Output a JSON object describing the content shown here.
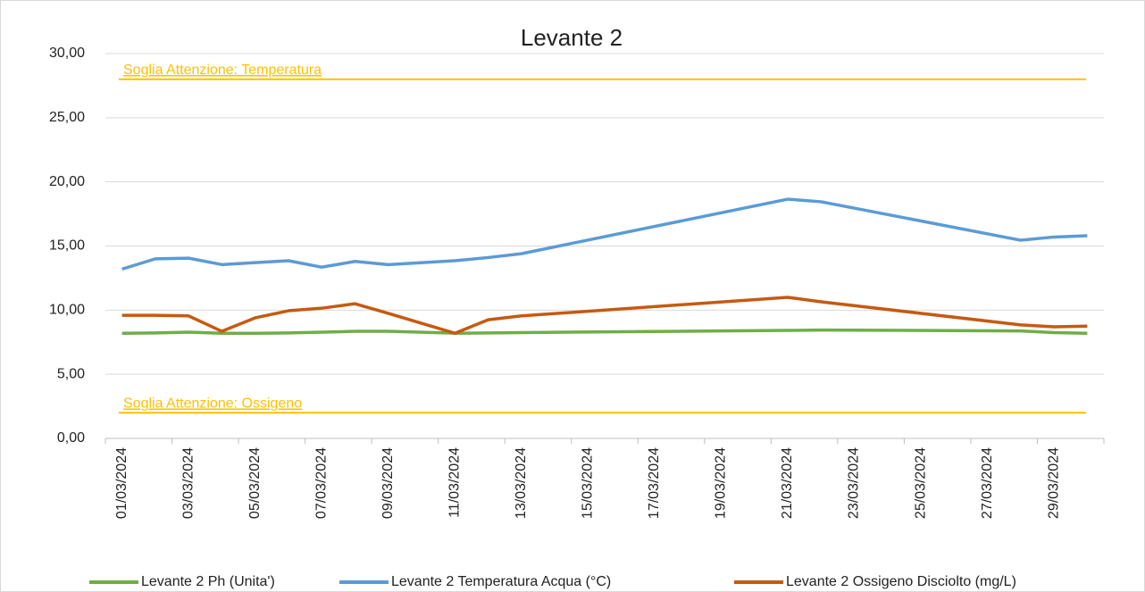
{
  "chart_data": {
    "type": "line",
    "title": "Levante 2",
    "x": [
      "01/03/2024",
      "02/03/2024",
      "03/03/2024",
      "04/03/2024",
      "05/03/2024",
      "06/03/2024",
      "07/03/2024",
      "08/03/2024",
      "09/03/2024",
      "11/03/2024",
      "12/03/2024",
      "13/03/2024",
      "21/03/2024",
      "22/03/2024",
      "28/03/2024",
      "29/03/2024",
      "30/03/2024"
    ],
    "series": [
      {
        "name": "Levante 2 Ph (Unita')",
        "color": "#70ad47",
        "values": [
          8.2,
          8.22,
          8.28,
          8.2,
          8.2,
          8.22,
          8.28,
          8.35,
          8.35,
          8.2,
          8.22,
          8.25,
          8.42,
          8.45,
          8.38,
          8.25,
          8.2
        ]
      },
      {
        "name": "Levante 2 Temperatura Acqua (°C)",
        "color": "#5b9bd5",
        "values": [
          13.2,
          14.0,
          14.05,
          13.55,
          13.7,
          13.85,
          13.35,
          13.8,
          13.55,
          13.85,
          14.1,
          14.4,
          18.65,
          18.45,
          15.45,
          15.7,
          15.8
        ]
      },
      {
        "name": "Levante 2 Ossigeno Disciolto (mg/L)",
        "color": "#c55a11",
        "values": [
          9.6,
          9.6,
          9.55,
          8.35,
          9.4,
          9.95,
          10.15,
          10.5,
          9.75,
          8.2,
          9.25,
          9.55,
          11.0,
          10.65,
          8.85,
          8.7,
          8.75
        ]
      }
    ],
    "reference_lines": [
      {
        "label": "Soglia Attenzione: Temperatura",
        "value": 28,
        "color": "#ffc000"
      },
      {
        "label": "Soglia Attenzione: Ossigeno",
        "value": 2,
        "color": "#ffc000"
      }
    ],
    "xticks": [
      "01/03/2024",
      "03/03/2024",
      "05/03/2024",
      "07/03/2024",
      "09/03/2024",
      "11/03/2024",
      "13/03/2024",
      "15/03/2024",
      "17/03/2024",
      "19/03/2024",
      "21/03/2024",
      "23/03/2024",
      "25/03/2024",
      "27/03/2024",
      "29/03/2024"
    ],
    "ylim": [
      0,
      30
    ],
    "yticks": [
      {
        "value": 0,
        "label": "0,00"
      },
      {
        "value": 5,
        "label": "5,00"
      },
      {
        "value": 10,
        "label": "10,00"
      },
      {
        "value": 15,
        "label": "15,00"
      },
      {
        "value": 20,
        "label": "20,00"
      },
      {
        "value": 25,
        "label": "25,00"
      },
      {
        "value": 30,
        "label": "30,00"
      }
    ],
    "grid": true,
    "legend": "bottom"
  }
}
